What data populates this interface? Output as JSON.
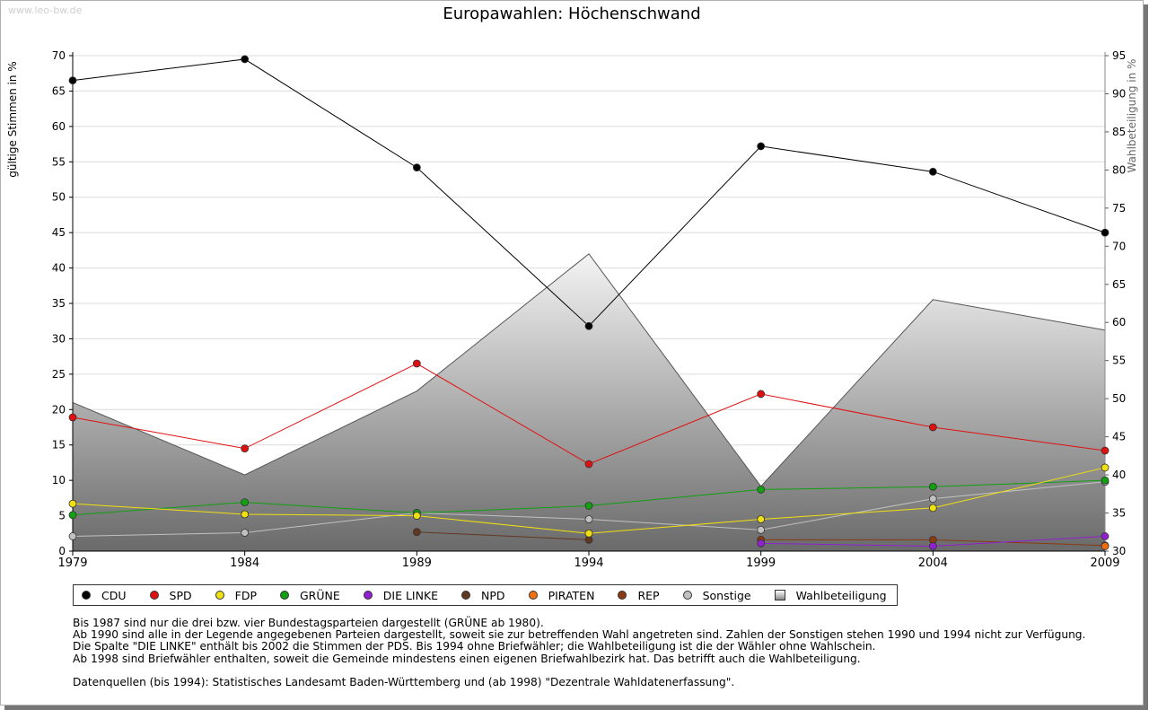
{
  "watermark": "www.leo-bw.de",
  "chart_data": {
    "type": "line",
    "title": "Europawahlen: Höchenschwand",
    "ylabel": "gültige Stimmen in %",
    "y2label": "Wahlbeteiligung in %",
    "ylim": [
      0,
      70
    ],
    "yticks": [
      0,
      5,
      10,
      15,
      20,
      25,
      30,
      35,
      40,
      45,
      50,
      55,
      60,
      65,
      70
    ],
    "y2lim": [
      30,
      95
    ],
    "y2ticks": [
      30,
      35,
      40,
      45,
      50,
      55,
      60,
      65,
      70,
      75,
      80,
      85,
      90,
      95
    ],
    "x": [
      1979,
      1984,
      1989,
      1994,
      1999,
      2004,
      2009
    ],
    "xticks": [
      "1979",
      "1984",
      "1989",
      "1994",
      "1999",
      "2004",
      "2009"
    ],
    "area": {
      "name": "Wahlbeteiligung",
      "values": [
        49.5,
        40,
        51,
        69,
        38.5,
        63,
        59
      ]
    },
    "series": [
      {
        "name": "CDU",
        "color": "#000000",
        "values": [
          66.5,
          69.5,
          54.2,
          31.8,
          57.2,
          53.6,
          45
        ]
      },
      {
        "name": "SPD",
        "color": "#e01010",
        "values": [
          18.9,
          14.5,
          26.5,
          12.3,
          22.2,
          17.5,
          14.2
        ]
      },
      {
        "name": "FDP",
        "color": "#f0e010",
        "values": [
          6.7,
          5.2,
          5.0,
          2.5,
          4.5,
          6.1,
          11.8
        ]
      },
      {
        "name": "GRÜNE",
        "color": "#10a010",
        "values": [
          5.1,
          6.9,
          5.4,
          6.4,
          8.7,
          9.1,
          10
        ]
      },
      {
        "name": "DIE LINKE",
        "color": "#9020d0",
        "values": [
          null,
          null,
          null,
          null,
          1.1,
          0.7,
          2.1
        ]
      },
      {
        "name": "NPD",
        "color": "#603820",
        "values": [
          null,
          null,
          2.7,
          1.6,
          null,
          null,
          null
        ]
      },
      {
        "name": "PIRATEN",
        "color": "#f07010",
        "values": [
          null,
          null,
          null,
          null,
          null,
          null,
          0.7
        ]
      },
      {
        "name": "REP",
        "color": "#8a3a10",
        "values": [
          null,
          null,
          null,
          null,
          1.6,
          1.6,
          0.8
        ]
      },
      {
        "name": "Sonstige",
        "color": "#c0c0c0",
        "values": [
          2.1,
          2.6,
          5.4,
          4.5,
          3.0,
          7.4,
          9.8
        ]
      }
    ],
    "legend_position": "bottom"
  },
  "legend": {
    "items": [
      {
        "label": "CDU",
        "color": "#000000"
      },
      {
        "label": "SPD",
        "color": "#e01010"
      },
      {
        "label": "FDP",
        "color": "#f0e010"
      },
      {
        "label": "GRÜNE",
        "color": "#10a010"
      },
      {
        "label": "DIE LINKE",
        "color": "#9020d0"
      },
      {
        "label": "NPD",
        "color": "#603820"
      },
      {
        "label": "PIRATEN",
        "color": "#f07010"
      },
      {
        "label": "REP",
        "color": "#8a3a10"
      },
      {
        "label": "Sonstige",
        "color": "#c0c0c0"
      }
    ],
    "area_label": "Wahlbeteiligung"
  },
  "notes": [
    "Bis 1987 sind nur die drei bzw. vier Bundestagsparteien dargestellt (GRÜNE ab 1980).",
    "Ab 1990 sind alle in der Legende angegebenen Parteien dargestellt, soweit sie zur betreffenden Wahl angetreten sind. Zahlen der Sonstigen stehen 1990 und 1994 nicht zur Verfügung.",
    "Die Spalte \"DIE LINKE\" enthält bis 2002 die Stimmen der PDS. Bis 1994 ohne Briefwähler; die Wahlbeteiligung ist die der Wähler ohne Wahlschein.",
    "Ab 1998 sind Briefwähler enthalten, soweit die Gemeinde mindestens einen eigenen Briefwahlbezirk hat. Das betrifft auch die Wahlbeteiligung.",
    "",
    "Datenquellen (bis 1994): Statistisches Landesamt Baden-Württemberg und (ab 1998) \"Dezentrale Wahldatenerfassung\"."
  ]
}
